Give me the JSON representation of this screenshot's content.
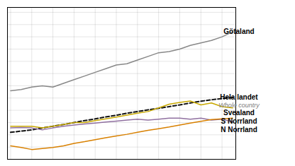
{
  "chart_data": {
    "type": "line",
    "x": [
      0,
      1,
      2,
      3,
      4,
      5,
      6,
      7,
      8,
      9,
      10,
      11,
      12,
      13,
      14,
      15,
      16,
      17,
      18,
      19,
      20,
      21
    ],
    "series": [
      {
        "name": "Götaland",
        "color": "#888888",
        "line_style": "solid",
        "values": [
          3.8,
          3.85,
          3.95,
          4.0,
          3.95,
          4.1,
          4.25,
          4.4,
          4.55,
          4.7,
          4.85,
          4.9,
          5.05,
          5.2,
          5.35,
          5.4,
          5.5,
          5.65,
          5.75,
          5.85,
          6.0,
          6.2
        ]
      },
      {
        "name": "Hela landet",
        "color": "#111111",
        "line_style": "dashed",
        "values": [
          2.1,
          2.15,
          2.2,
          2.28,
          2.35,
          2.42,
          2.5,
          2.58,
          2.65,
          2.73,
          2.8,
          2.88,
          2.95,
          3.02,
          3.08,
          3.15,
          3.22,
          3.3,
          3.37,
          3.43,
          3.48,
          3.52
        ]
      },
      {
        "name": "Svealand",
        "color": "#c8a800",
        "line_style": "solid",
        "values": [
          2.35,
          2.35,
          2.35,
          2.28,
          2.35,
          2.42,
          2.5,
          2.5,
          2.58,
          2.65,
          2.72,
          2.8,
          2.88,
          2.95,
          3.1,
          3.25,
          3.32,
          3.38,
          3.22,
          3.3,
          3.15,
          3.1
        ]
      },
      {
        "name": "N Norrland",
        "color": "#9070a0",
        "line_style": "solid",
        "values": [
          2.28,
          2.3,
          2.28,
          2.2,
          2.28,
          2.35,
          2.4,
          2.44,
          2.48,
          2.52,
          2.56,
          2.6,
          2.64,
          2.6,
          2.64,
          2.68,
          2.68,
          2.64,
          2.68,
          2.6,
          2.64,
          2.52
        ]
      },
      {
        "name": "S Norrland",
        "color": "#d88000",
        "line_style": "solid",
        "values": [
          1.55,
          1.48,
          1.4,
          1.44,
          1.48,
          1.55,
          1.65,
          1.72,
          1.8,
          1.88,
          1.95,
          2.02,
          2.1,
          2.18,
          2.25,
          2.32,
          2.4,
          2.48,
          2.55,
          2.62,
          2.65,
          2.68
        ]
      }
    ],
    "annotations": [
      {
        "text": "Whole country",
        "series": "Hela landet"
      }
    ],
    "xlim": [
      -0.3,
      21.3
    ],
    "ylim": [
      1.0,
      7.2
    ],
    "xticks": [
      0,
      2,
      4,
      6,
      8,
      10,
      12,
      14,
      16,
      18,
      20
    ],
    "yticks": [
      1.5,
      2.0,
      2.5,
      3.0,
      3.5,
      4.0,
      4.5,
      5.0,
      5.5,
      6.0,
      6.5,
      7.0
    ],
    "grid": true,
    "tick_labels": false
  }
}
